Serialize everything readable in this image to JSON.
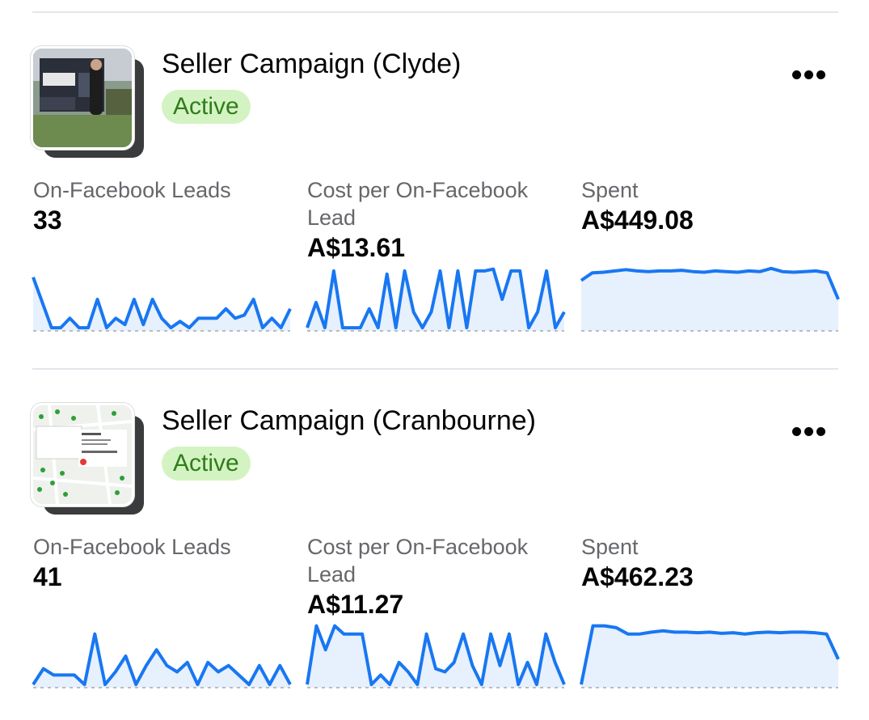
{
  "campaigns": [
    {
      "title": "Seller Campaign (Clyde)",
      "status": "Active",
      "thumbnail": "sold-sign-photo",
      "metrics": [
        {
          "label": "On-Facebook Leads",
          "value": "33",
          "trend": [
            0.85,
            0.45,
            0.05,
            0.05,
            0.2,
            0.05,
            0.05,
            0.5,
            0.05,
            0.2,
            0.1,
            0.5,
            0.1,
            0.5,
            0.2,
            0.05,
            0.15,
            0.05,
            0.2,
            0.2,
            0.2,
            0.35,
            0.2,
            0.25,
            0.5,
            0.05,
            0.2,
            0.05,
            0.35
          ]
        },
        {
          "label": "Cost per On-Facebook Lead",
          "value": "A$13.61",
          "trend": [
            0.05,
            0.45,
            0.05,
            0.95,
            0.05,
            0.05,
            0.05,
            0.35,
            0.05,
            0.9,
            0.05,
            0.95,
            0.3,
            0.05,
            0.3,
            0.95,
            0.05,
            0.95,
            0.05,
            0.95,
            0.95,
            0.98,
            0.5,
            0.95,
            0.95,
            0.05,
            0.3,
            0.95,
            0.05,
            0.3
          ]
        },
        {
          "label": "Spent",
          "value": "A$449.08",
          "trend": [
            0.8,
            0.92,
            0.93,
            0.95,
            0.97,
            0.95,
            0.94,
            0.95,
            0.95,
            0.96,
            0.94,
            0.93,
            0.95,
            0.94,
            0.93,
            0.95,
            0.94,
            0.99,
            0.94,
            0.93,
            0.94,
            0.95,
            0.92,
            0.5
          ]
        }
      ]
    },
    {
      "title": "Seller Campaign (Cranbourne)",
      "status": "Active",
      "thumbnail": "map-listing-screenshot",
      "metrics": [
        {
          "label": "On-Facebook Leads",
          "value": "41",
          "trend": [
            0.05,
            0.3,
            0.2,
            0.2,
            0.2,
            0.05,
            0.85,
            0.05,
            0.25,
            0.5,
            0.05,
            0.35,
            0.6,
            0.35,
            0.25,
            0.4,
            0.05,
            0.4,
            0.25,
            0.35,
            0.2,
            0.05,
            0.35,
            0.05,
            0.35,
            0.05
          ]
        },
        {
          "label": "Cost per On-Facebook Lead",
          "value": "A$11.27",
          "trend": [
            0.05,
            0.98,
            0.6,
            0.98,
            0.85,
            0.85,
            0.85,
            0.05,
            0.2,
            0.05,
            0.4,
            0.25,
            0.05,
            0.85,
            0.3,
            0.25,
            0.4,
            0.85,
            0.35,
            0.05,
            0.85,
            0.35,
            0.85,
            0.05,
            0.4,
            0.05,
            0.85,
            0.4,
            0.05
          ]
        },
        {
          "label": "Spent",
          "value": "A$462.23",
          "trend": [
            0.05,
            0.98,
            0.98,
            0.95,
            0.85,
            0.85,
            0.88,
            0.9,
            0.88,
            0.88,
            0.87,
            0.88,
            0.86,
            0.87,
            0.85,
            0.87,
            0.88,
            0.87,
            0.88,
            0.88,
            0.87,
            0.85,
            0.45
          ]
        }
      ]
    }
  ],
  "more_icon": "more-horizontal-icon"
}
